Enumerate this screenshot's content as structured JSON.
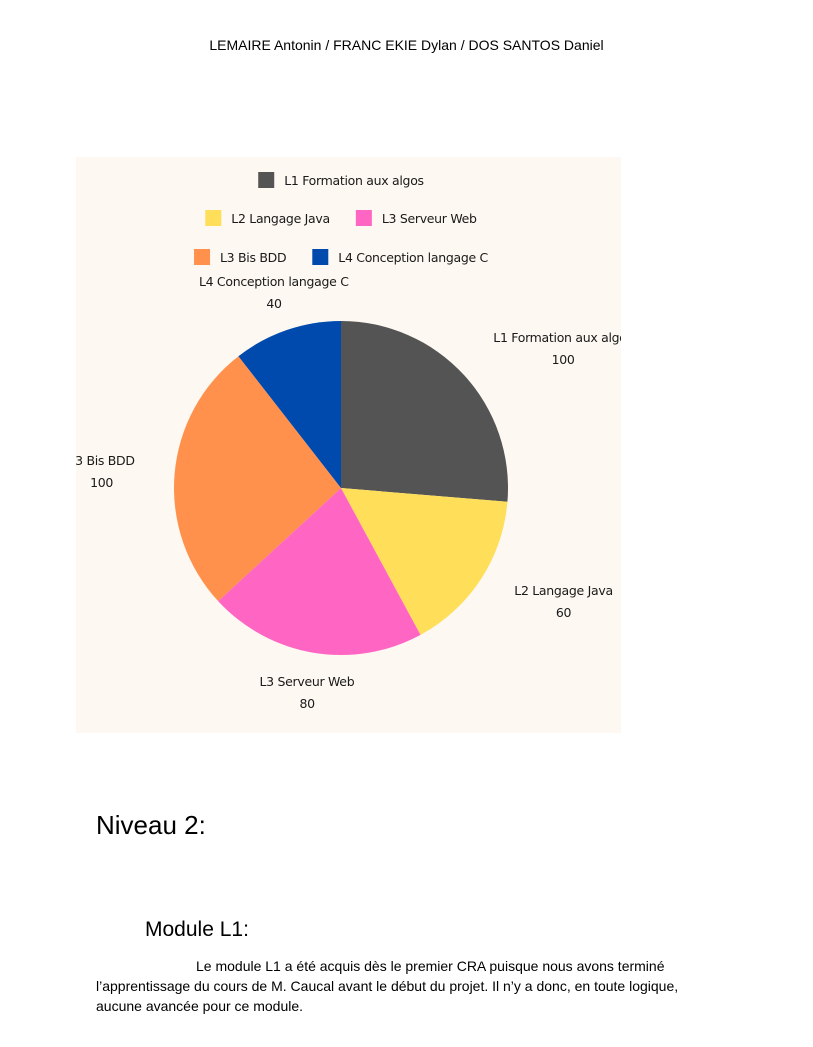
{
  "header": {
    "authors": "LEMAIRE Antonin / FRANC EKIE Dylan / DOS SANTOS Daniel"
  },
  "chart_data": {
    "type": "pie",
    "title": "",
    "categories": [
      "L1 Formation aux algos",
      "L2 Langage Java",
      "L3 Serveur Web",
      "L3 Bis BDD",
      "L4 Conception langage C"
    ],
    "values": [
      100,
      60,
      80,
      100,
      40
    ],
    "colors": [
      "#545454",
      "#ffde59",
      "#ff66c4",
      "#ff914d",
      "#004aad"
    ],
    "legend_position": "top",
    "legend_rows": [
      [
        0
      ],
      [
        1,
        2
      ],
      [
        3,
        4
      ]
    ],
    "data_labels": true
  },
  "sections": {
    "level_heading": "Niveau 2:",
    "module_heading": "Module L1:",
    "paragraph": "Le module L1 a été acquis dès le premier CRA puisque nous avons terminé l’apprentissage du cours de M. Caucal avant le début du projet. Il n’y a donc, en toute logique, aucune avancée pour ce module."
  }
}
